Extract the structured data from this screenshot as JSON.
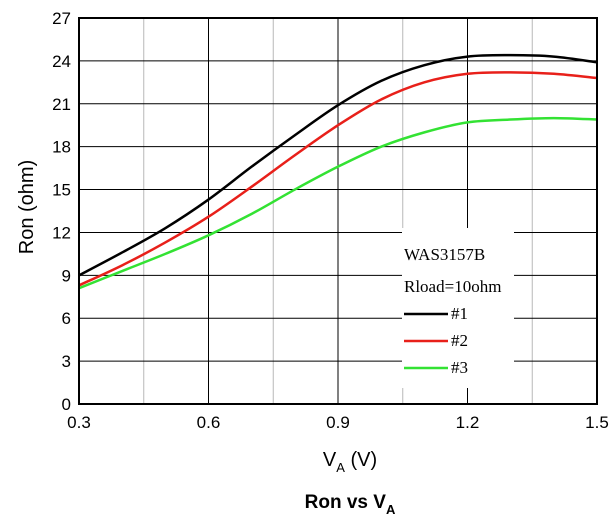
{
  "chart_data": {
    "type": "line",
    "title": "Ron vs V",
    "title_sub": "A",
    "xlabel": "V",
    "xlabel_sub": "A",
    "xlabel_unit": " (V)",
    "ylabel": "Ron (ohm)",
    "xlim": [
      0.3,
      1.5
    ],
    "ylim": [
      0,
      27
    ],
    "xticks": [
      "0.3",
      "0.6",
      "0.9",
      "1.2",
      "1.5"
    ],
    "yticks": [
      "0",
      "3",
      "6",
      "9",
      "12",
      "15",
      "18",
      "21",
      "24",
      "27"
    ],
    "grid": true,
    "legend": {
      "placement": "lower-right",
      "heading": "WAS3157B",
      "subheading": "Rload=10ohm"
    },
    "series": [
      {
        "name": "#1",
        "color": "#000000",
        "x": [
          0.3,
          0.4,
          0.5,
          0.6,
          0.7,
          0.8,
          0.9,
          1.0,
          1.1,
          1.2,
          1.3,
          1.4,
          1.5
        ],
        "y": [
          9.0,
          10.6,
          12.3,
          14.3,
          16.6,
          18.8,
          20.9,
          22.6,
          23.7,
          24.3,
          24.4,
          24.3,
          23.9
        ]
      },
      {
        "name": "#2",
        "color": "#e8201a",
        "x": [
          0.3,
          0.4,
          0.5,
          0.6,
          0.7,
          0.8,
          0.9,
          1.0,
          1.1,
          1.2,
          1.3,
          1.4,
          1.5
        ],
        "y": [
          8.3,
          9.7,
          11.3,
          13.1,
          15.2,
          17.4,
          19.5,
          21.3,
          22.5,
          23.1,
          23.2,
          23.1,
          22.8
        ]
      },
      {
        "name": "#3",
        "color": "#33e233",
        "x": [
          0.3,
          0.4,
          0.5,
          0.6,
          0.7,
          0.8,
          0.9,
          1.0,
          1.1,
          1.2,
          1.3,
          1.4,
          1.5
        ],
        "y": [
          8.1,
          9.3,
          10.5,
          11.8,
          13.3,
          15.0,
          16.6,
          18.0,
          19.0,
          19.7,
          19.9,
          20.0,
          19.9
        ]
      }
    ]
  }
}
